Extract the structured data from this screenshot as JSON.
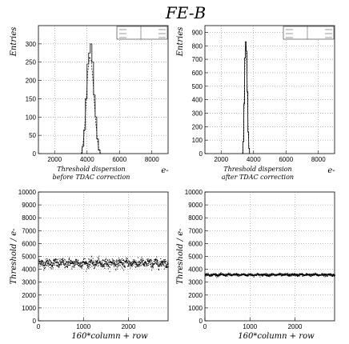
{
  "figure_title": "FE-B",
  "chart_data": [
    {
      "id": "hist-before",
      "type": "histogram",
      "xlabel": "Threshold dispersion",
      "xunit": "e-",
      "sublabel": "before TDAC correction",
      "ylabel": "Entries",
      "xlim": [
        1000,
        9000
      ],
      "ylim": [
        0,
        350
      ],
      "xticks": [
        2000,
        4000,
        6000,
        8000
      ],
      "yticks": [
        0,
        50,
        100,
        150,
        200,
        250,
        300
      ],
      "grid": true,
      "bins_start": 3600,
      "bin_width": 100,
      "counts": [
        0,
        20,
        65,
        150,
        245,
        275,
        300,
        250,
        160,
        100,
        40,
        10,
        0
      ],
      "fit_counts": [
        0,
        25,
        70,
        145,
        225,
        265,
        255,
        210,
        140,
        80,
        35,
        8,
        0
      ],
      "peak_label": {
        "x": 4600,
        "y": 310
      }
    },
    {
      "id": "hist-after",
      "type": "histogram",
      "xlabel": "Threshold dispersion",
      "xunit": "e-",
      "sublabel": "after TDAC correction",
      "ylabel": "Entries",
      "xlim": [
        1000,
        9000
      ],
      "ylim": [
        0,
        950
      ],
      "xticks": [
        2000,
        4000,
        6000,
        8000
      ],
      "yticks": [
        0,
        100,
        200,
        300,
        400,
        500,
        600,
        700,
        800,
        900
      ],
      "grid": true,
      "bins_start": 3300,
      "bin_width": 50,
      "counts": [
        0,
        90,
        370,
        710,
        830,
        760,
        460,
        160,
        40,
        0
      ],
      "fit_counts": [
        0,
        110,
        390,
        690,
        800,
        720,
        430,
        150,
        35,
        0
      ]
    },
    {
      "id": "scatter-before",
      "type": "scatter",
      "xlabel": "160*column + row",
      "ylabel": "Threshold / e-",
      "xlim": [
        0,
        2880
      ],
      "ylim": [
        0,
        10000
      ],
      "xticks": [
        0,
        1000,
        2000
      ],
      "yticks": [
        0,
        1000,
        2000,
        3000,
        4000,
        5000,
        6000,
        7000,
        8000,
        9000,
        10000
      ],
      "grid": true,
      "mean": 4500,
      "spread": 280,
      "n_points": 2880
    },
    {
      "id": "scatter-after",
      "type": "scatter",
      "xlabel": "160*column + row",
      "ylabel": "Threshold / e-",
      "xlim": [
        0,
        2880
      ],
      "ylim": [
        0,
        10000
      ],
      "xticks": [
        0,
        1000,
        2000
      ],
      "yticks": [
        0,
        1000,
        2000,
        3000,
        4000,
        5000,
        6000,
        7000,
        8000,
        9000,
        10000
      ],
      "grid": true,
      "mean": 3600,
      "spread": 80,
      "n_points": 2880
    }
  ]
}
